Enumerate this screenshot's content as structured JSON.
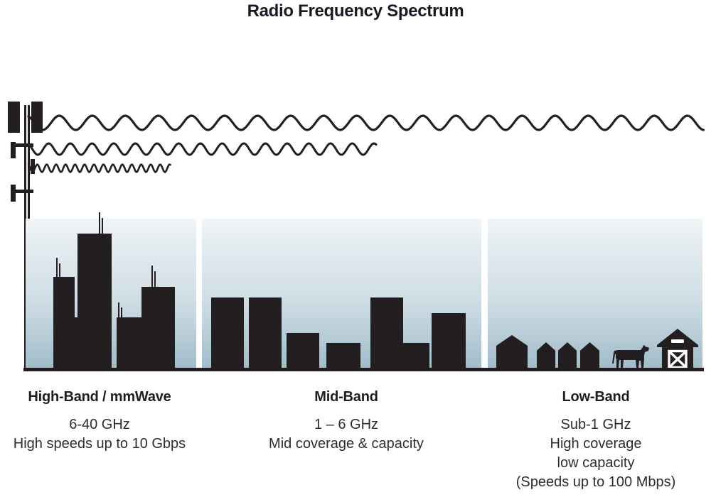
{
  "title": "Radio Frequency Spectrum",
  "bands": [
    {
      "id": "high-band",
      "heading": "High-Band / mmWave",
      "lines": [
        "6-40 GHz",
        "High speeds up to 10 Gbps"
      ],
      "scene": "city skyline with antennas"
    },
    {
      "id": "mid-band",
      "heading": "Mid-Band",
      "lines": [
        "1 – 6 GHz",
        "Mid coverage & capacity"
      ],
      "scene": "mid-rise buildings"
    },
    {
      "id": "low-band",
      "heading": "Low-Band",
      "lines": [
        "Sub-1 GHz",
        "High coverage",
        "low capacity",
        "(Speeds up to 100 Mbps)"
      ],
      "scene": "houses, cow and barn"
    }
  ],
  "waves": [
    {
      "name": "long-wavelength-wave",
      "band": "low-band",
      "centerY": 173,
      "amplitude": 10,
      "wavelength": 46.5,
      "xStart": 40,
      "xEnd": 990,
      "phase": 2.0,
      "strokeWidth": 3.2
    },
    {
      "name": "medium-wavelength-wave",
      "band": "mid-band",
      "centerY": 210,
      "amplitude": 8,
      "wavelength": 30.5,
      "xStart": 40,
      "xEnd": 530,
      "phase": 2.0,
      "strokeWidth": 3.0
    },
    {
      "name": "short-wavelength-wave",
      "band": "high-band",
      "centerY": 237,
      "amplitude": 5.5,
      "wavelength": 13.3,
      "xStart": 40,
      "xEnd": 240,
      "phase": 2.0,
      "strokeWidth": 2.6
    }
  ],
  "colors": {
    "ink": "#231f20",
    "title": "#171b24",
    "text": "#2d2d2d",
    "sky-top": "#f2f6f8",
    "sky-mid": "#cfdde4",
    "sky-bottom": "#a2bcca"
  }
}
